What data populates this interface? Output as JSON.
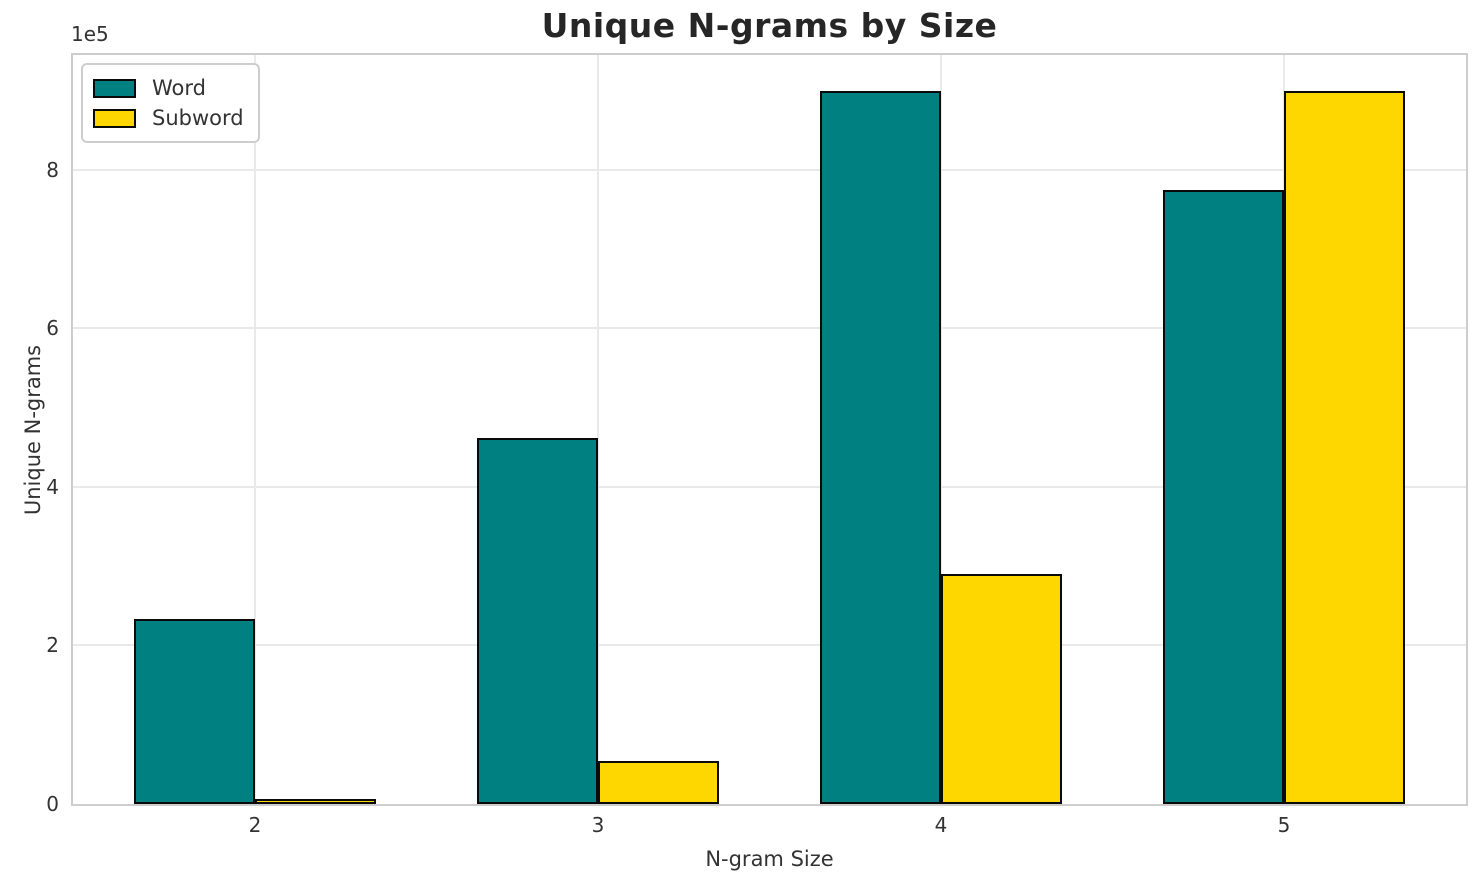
{
  "title": "Unique N-grams by Size",
  "axes": {
    "xlabel": "N-gram Size",
    "ylabel": "Unique N-grams",
    "offset_text": "1e5"
  },
  "legend": {
    "items": [
      {
        "label": "Word",
        "color": "#008080"
      },
      {
        "label": "Subword",
        "color": "#FFD700"
      }
    ]
  },
  "chart_data": {
    "type": "bar",
    "title": "Unique N-grams by Size",
    "xlabel": "N-gram Size",
    "ylabel": "Unique N-grams",
    "categories": [
      "2",
      "3",
      "4",
      "5"
    ],
    "series": [
      {
        "name": "Word",
        "color": "#008080",
        "values": [
          234000,
          462000,
          900000,
          775000
        ]
      },
      {
        "name": "Subword",
        "color": "#FFD700",
        "values": [
          6500,
          54000,
          290000,
          900000
        ]
      }
    ],
    "bar_edge_color": "#000000",
    "bar_width_units": 0.35,
    "ylim": [
      0,
      945000
    ],
    "y_scale_offset_text": "1e5",
    "yticks": [
      {
        "value": 0,
        "label": "0"
      },
      {
        "value": 200000,
        "label": "2"
      },
      {
        "value": 400000,
        "label": "4"
      },
      {
        "value": 600000,
        "label": "6"
      },
      {
        "value": 800000,
        "label": "8"
      }
    ],
    "xticks": [
      {
        "label": "2"
      },
      {
        "label": "3"
      },
      {
        "label": "4"
      },
      {
        "label": "5"
      }
    ],
    "grid": true,
    "legend_position": "upper left",
    "legend_entries": [
      "Word",
      "Subword"
    ]
  }
}
